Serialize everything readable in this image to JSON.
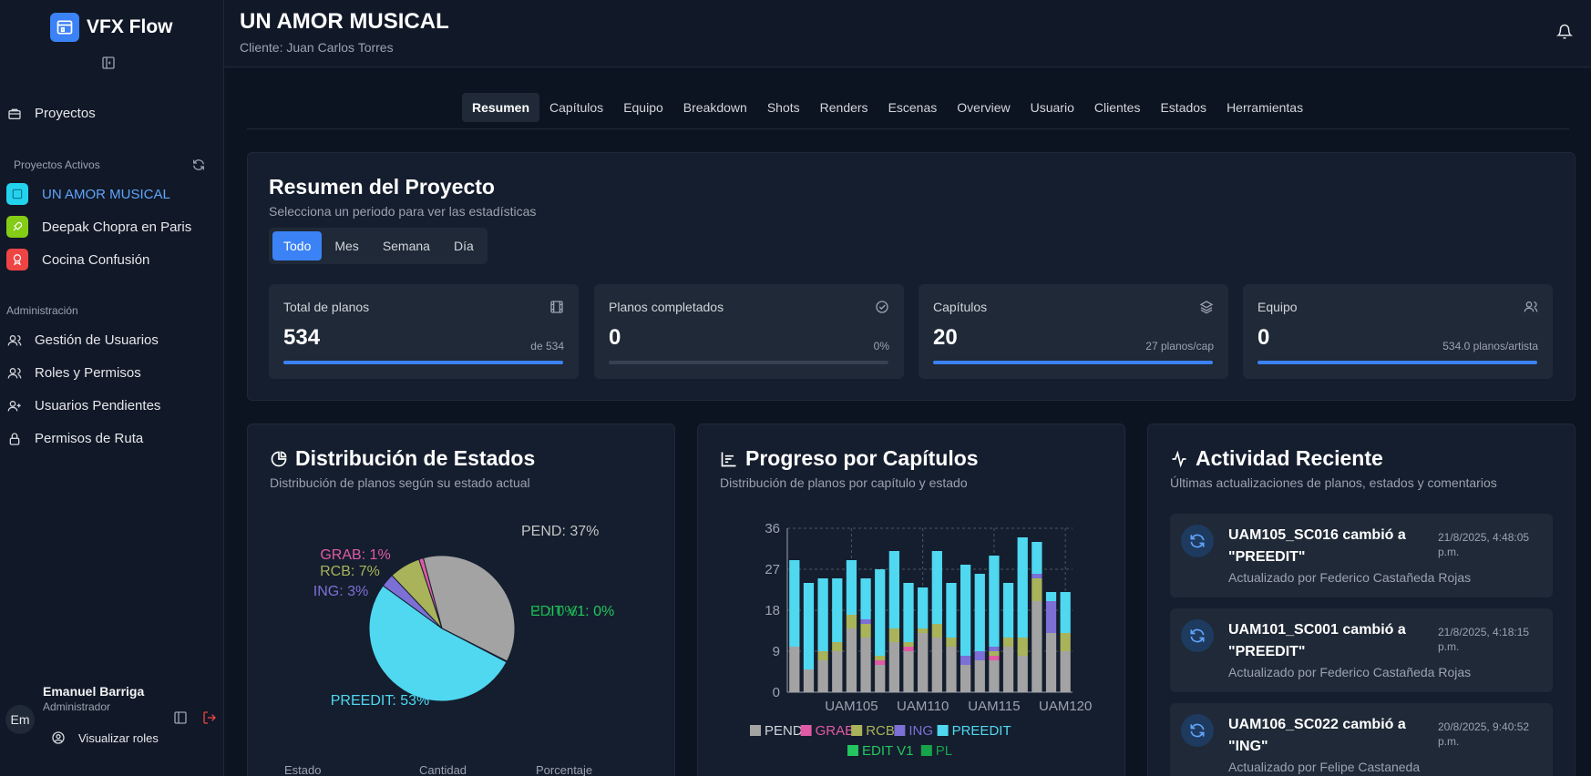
{
  "app": {
    "name": "VFX Flow"
  },
  "sidebar": {
    "projects_link": "Proyectos",
    "active_projects_label": "Proyectos Activos",
    "projects": [
      {
        "label": "UN AMOR MUSICAL",
        "color": "#22d3ee",
        "icon": "film-icon"
      },
      {
        "label": "Deepak Chopra en Paris",
        "color": "#84cc16",
        "icon": "rocket-icon"
      },
      {
        "label": "Cocina Confusión",
        "color": "#ef4444",
        "icon": "award-icon"
      }
    ],
    "admin_label": "Administración",
    "admin_items": [
      {
        "label": "Gestión de Usuarios",
        "icon": "users-icon"
      },
      {
        "label": "Roles y Permisos",
        "icon": "users-icon"
      },
      {
        "label": "Usuarios Pendientes",
        "icon": "user-plus-icon"
      },
      {
        "label": "Permisos de Ruta",
        "icon": "lock-icon"
      }
    ],
    "user": {
      "initials": "Em",
      "name": "Emanuel Barriga",
      "role": "Administrador",
      "view_roles": "Visualizar roles"
    }
  },
  "header": {
    "title": "UN AMOR MUSICAL",
    "client": "Cliente: Juan Carlos Torres"
  },
  "tabs": [
    "Resumen",
    "Capítulos",
    "Equipo",
    "Breakdown",
    "Shots",
    "Renders",
    "Escenas",
    "Overview",
    "Usuario",
    "Clientes",
    "Estados",
    "Herramientas"
  ],
  "summary": {
    "title": "Resumen del Proyecto",
    "subtitle": "Selecciona un periodo para ver las estadísticas",
    "periods": [
      "Todo",
      "Mes",
      "Semana",
      "Día"
    ],
    "stats": [
      {
        "label": "Total de planos",
        "value": "534",
        "note": "de 534",
        "progress": 1.0,
        "icon": "film-icon"
      },
      {
        "label": "Planos completados",
        "value": "0",
        "note": "0%",
        "progress": 0.0,
        "icon": "check-circle-icon"
      },
      {
        "label": "Capítulos",
        "value": "20",
        "note": "27 planos/cap",
        "progress": 1.0,
        "icon": "layers-icon"
      },
      {
        "label": "Equipo",
        "value": "0",
        "note": "534.0 planos/artista",
        "progress": 1.0,
        "icon": "users-icon"
      }
    ]
  },
  "states_panel": {
    "title": "Distribución de Estados",
    "subtitle": "Distribución de planos según su estado actual",
    "table_headers": [
      "Estado",
      "Cantidad",
      "Porcentaje"
    ]
  },
  "chapters_panel": {
    "title": "Progreso por Capítulos",
    "subtitle": "Distribución de planos por capítulo y estado"
  },
  "activity_panel": {
    "title": "Actividad Reciente",
    "subtitle": "Últimas actualizaciones de planos, estados y comentarios",
    "items": [
      {
        "title": "UAM105_SC016 cambió a \"PREEDIT\"",
        "date": "21/8/2025, 4:48:05 p.m.",
        "by": "Actualizado por Federico Castañeda Rojas"
      },
      {
        "title": "UAM101_SC001 cambió a \"PREEDIT\"",
        "date": "21/8/2025, 4:18:15 p.m.",
        "by": "Actualizado por Federico Castañeda Rojas"
      },
      {
        "title": "UAM106_SC022 cambió a \"ING\"",
        "date": "20/8/2025, 9:40:52 p.m.",
        "by": "Actualizado por Felipe Castaneda"
      }
    ]
  },
  "chart_data": [
    {
      "type": "pie",
      "slices": [
        {
          "name": "PEND",
          "label": "PEND: 37%",
          "value": 37,
          "color": "#a3a3a3"
        },
        {
          "name": "EDIT V1",
          "label": "EDIT V1: 0%",
          "value": 0.1,
          "color": "#22c55e"
        },
        {
          "name": "PL",
          "label": "PL: 0%",
          "value": 0.1,
          "color": "#16a34a"
        },
        {
          "name": "PREEDIT",
          "label": "PREEDIT: 53%",
          "value": 53,
          "color": "#4fd8f0"
        },
        {
          "name": "ING",
          "label": "ING: 3%",
          "value": 3,
          "color": "#7c6fd6"
        },
        {
          "name": "RCB",
          "label": "RCB: 7%",
          "value": 7,
          "color": "#a8b35a"
        },
        {
          "name": "GRAB",
          "label": "GRAB: 1%",
          "value": 1,
          "color": "#e05aa6"
        }
      ]
    },
    {
      "type": "bar",
      "stacked": true,
      "categories": [
        "UAM101",
        "UAM102",
        "UAM103",
        "UAM104",
        "UAM105",
        "UAM106",
        "UAM107",
        "UAM108",
        "UAM109",
        "UAM110",
        "UAM111",
        "UAM112",
        "UAM113",
        "UAM114",
        "UAM115",
        "UAM116",
        "UAM117",
        "UAM118",
        "UAM119",
        "UAM120"
      ],
      "x_ticks": [
        "UAM105",
        "UAM110",
        "UAM115",
        "UAM120"
      ],
      "ylim": [
        0,
        36
      ],
      "y_ticks": [
        0,
        9,
        18,
        27,
        36
      ],
      "grid": true,
      "legend": "bottom",
      "series": [
        {
          "name": "PEND",
          "color": "#a3a3a3",
          "values": [
            10,
            5,
            7,
            9,
            14,
            12,
            6,
            11,
            9,
            13,
            12,
            10,
            6,
            7,
            7,
            10,
            8,
            20,
            13,
            9
          ]
        },
        {
          "name": "GRAB",
          "color": "#e05aa6",
          "values": [
            0,
            0,
            0,
            0,
            0,
            0,
            1,
            0,
            1,
            0,
            0,
            0,
            0,
            0,
            1,
            0,
            0,
            0,
            0,
            0
          ]
        },
        {
          "name": "RCB",
          "color": "#a8b35a",
          "values": [
            0,
            0,
            2,
            2,
            3,
            3,
            1,
            3,
            1,
            1,
            3,
            2,
            0,
            0,
            1,
            2,
            4,
            5,
            0,
            4
          ]
        },
        {
          "name": "ING",
          "color": "#7c6fd6",
          "values": [
            0,
            0,
            0,
            0,
            0,
            1,
            0,
            0,
            0,
            0,
            0,
            0,
            2,
            2,
            1,
            0,
            0,
            1,
            7,
            0
          ]
        },
        {
          "name": "PREEDIT",
          "color": "#4fd8f0",
          "values": [
            19,
            19,
            16,
            14,
            12,
            9,
            19,
            17,
            13,
            9,
            16,
            12,
            20,
            17,
            20,
            12,
            22,
            7,
            2,
            9
          ]
        },
        {
          "name": "EDIT V1",
          "color": "#22c55e",
          "values": [
            0,
            0,
            0,
            0,
            0,
            0,
            0,
            0,
            0,
            0,
            0,
            0,
            0,
            0,
            0,
            0,
            0,
            0,
            0,
            0
          ]
        },
        {
          "name": "PL",
          "color": "#16a34a",
          "values": [
            0,
            0,
            0,
            0,
            0,
            0,
            0,
            0,
            0,
            0,
            0,
            0,
            0,
            0,
            0,
            0,
            0,
            0,
            0,
            0
          ]
        }
      ]
    }
  ]
}
